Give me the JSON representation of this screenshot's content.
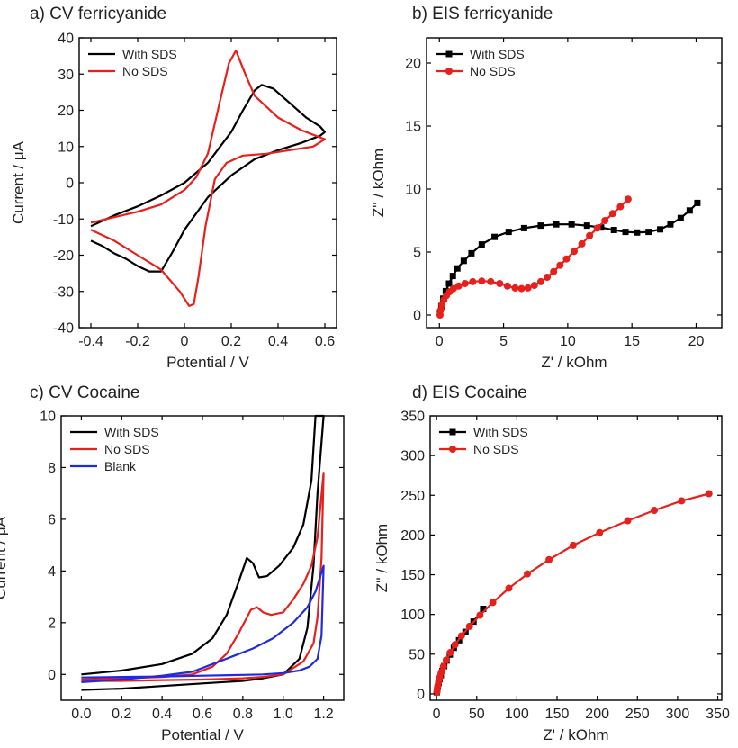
{
  "chart_data": [
    {
      "type": "line",
      "title": "a) CV ferricyanide",
      "xlabel": "Potential / V",
      "ylabel": "Current / μA",
      "xlim": [
        -0.45,
        0.65
      ],
      "ylim": [
        -40,
        40
      ],
      "xticks": [
        -0.4,
        -0.2,
        0.0,
        0.2,
        0.4,
        0.6
      ],
      "xtick_labels": [
        "-0.4",
        "-0.2",
        "0",
        "0.2",
        "0.4",
        "0.6"
      ],
      "yticks": [
        -40,
        -30,
        -20,
        -10,
        0,
        10,
        20,
        30,
        40
      ],
      "ytick_labels": [
        "-40",
        "-30",
        "-20",
        "-10",
        "0",
        "10",
        "20",
        "30",
        "40"
      ],
      "legend_position": "top-left",
      "series": [
        {
          "name": "With SDS",
          "color": "#000000",
          "markers": false,
          "x": [
            -0.4,
            -0.3,
            -0.2,
            -0.1,
            0.0,
            0.1,
            0.2,
            0.25,
            0.3,
            0.33,
            0.38,
            0.45,
            0.52,
            0.58,
            0.6,
            0.58,
            0.5,
            0.4,
            0.3,
            0.2,
            0.1,
            0.0,
            -0.05,
            -0.1,
            -0.15,
            -0.2,
            -0.25,
            -0.3,
            -0.35,
            -0.4
          ],
          "y": [
            -12,
            -9,
            -6.5,
            -3.5,
            0,
            5.5,
            14,
            20,
            25.5,
            27,
            26,
            22,
            18,
            15.5,
            14,
            13,
            11,
            9,
            6.5,
            2,
            -4,
            -13,
            -19,
            -24.5,
            -24.5,
            -23,
            -21,
            -19.5,
            -17.5,
            -16
          ]
        },
        {
          "name": "No SDS",
          "color": "#e8201c",
          "markers": false,
          "x": [
            -0.4,
            -0.3,
            -0.2,
            -0.1,
            -0.05,
            0.0,
            0.05,
            0.1,
            0.15,
            0.19,
            0.22,
            0.26,
            0.3,
            0.4,
            0.5,
            0.6,
            0.55,
            0.45,
            0.35,
            0.25,
            0.18,
            0.13,
            0.09,
            0.06,
            0.04,
            0.02,
            -0.02,
            -0.1,
            -0.2,
            -0.3,
            -0.4
          ],
          "y": [
            -11,
            -9.5,
            -8,
            -6,
            -4,
            -2,
            1.5,
            8,
            22,
            33,
            36.5,
            30,
            24,
            18,
            14.5,
            12,
            10,
            9,
            8,
            7.5,
            5.5,
            1,
            -12,
            -26,
            -33.5,
            -34,
            -30,
            -24,
            -20,
            -16,
            -13
          ]
        }
      ]
    },
    {
      "type": "line",
      "title": "b) EIS ferricyanide",
      "xlabel": "Z' / kOhm",
      "ylabel": "Z'' / kOhm",
      "xlim": [
        -1,
        22
      ],
      "ylim": [
        -1,
        22
      ],
      "xticks": [
        0,
        5,
        10,
        15,
        20
      ],
      "xtick_labels": [
        "0",
        "5",
        "10",
        "15",
        "20"
      ],
      "yticks": [
        0,
        5,
        10,
        15,
        20
      ],
      "ytick_labels": [
        "0",
        "5",
        "10",
        "15",
        "20"
      ],
      "legend_position": "top-left",
      "series": [
        {
          "name": "With SDS",
          "color": "#000000",
          "marker": "square",
          "x": [
            0.05,
            0.15,
            0.3,
            0.5,
            0.75,
            1.05,
            1.4,
            1.9,
            2.5,
            3.3,
            4.3,
            5.4,
            6.6,
            7.9,
            9.1,
            10.3,
            11.5,
            12.6,
            13.6,
            14.5,
            15.4,
            16.3,
            17.2,
            18.0,
            18.8,
            19.5,
            20.1
          ],
          "y": [
            0.2,
            0.7,
            1.3,
            1.9,
            2.5,
            3.1,
            3.7,
            4.3,
            4.9,
            5.6,
            6.2,
            6.6,
            6.9,
            7.1,
            7.2,
            7.2,
            7.1,
            6.95,
            6.75,
            6.6,
            6.55,
            6.6,
            6.8,
            7.2,
            7.7,
            8.3,
            8.9
          ]
        },
        {
          "name": "No SDS",
          "color": "#e8201c",
          "marker": "circle",
          "x": [
            0.05,
            0.1,
            0.2,
            0.35,
            0.55,
            0.8,
            1.1,
            1.5,
            2.0,
            2.6,
            3.3,
            4.0,
            4.7,
            5.3,
            5.9,
            6.4,
            6.9,
            7.4,
            7.9,
            8.4,
            8.9,
            9.4,
            9.9,
            10.5,
            11.1,
            11.7,
            12.3,
            12.9,
            13.5,
            14.1,
            14.7
          ],
          "y": [
            0.0,
            0.4,
            0.8,
            1.2,
            1.55,
            1.85,
            2.1,
            2.3,
            2.5,
            2.65,
            2.7,
            2.65,
            2.5,
            2.3,
            2.15,
            2.1,
            2.15,
            2.35,
            2.65,
            3.0,
            3.45,
            3.95,
            4.45,
            5.05,
            5.65,
            6.3,
            6.9,
            7.5,
            8.05,
            8.6,
            9.2
          ]
        }
      ]
    },
    {
      "type": "line",
      "title": "c) CV Cocaine",
      "xlabel": "Potential / V",
      "ylabel": "Current / μA",
      "xlim": [
        -0.1,
        1.3
      ],
      "ylim": [
        -1,
        10
      ],
      "xticks": [
        0.0,
        0.2,
        0.4,
        0.6,
        0.8,
        1.0,
        1.2
      ],
      "xtick_labels": [
        "0.0",
        "0.2",
        "0.4",
        "0.6",
        "0.8",
        "1.0",
        "1.2"
      ],
      "yticks": [
        0,
        2,
        4,
        6,
        8,
        10
      ],
      "ytick_labels": [
        "0",
        "2",
        "4",
        "6",
        "8",
        "10"
      ],
      "legend_position": "top-left",
      "series": [
        {
          "name": "With SDS",
          "color": "#000000",
          "markers": false,
          "x": [
            0.0,
            0.2,
            0.4,
            0.55,
            0.65,
            0.72,
            0.78,
            0.82,
            0.85,
            0.88,
            0.92,
            0.98,
            1.05,
            1.1,
            1.14,
            1.16,
            1.2,
            1.17,
            1.15,
            1.12,
            1.08,
            1.0,
            0.9,
            0.8,
            0.6,
            0.4,
            0.2,
            0.0
          ],
          "y": [
            0.0,
            0.15,
            0.4,
            0.8,
            1.4,
            2.3,
            3.6,
            4.5,
            4.3,
            3.75,
            3.8,
            4.2,
            4.9,
            5.8,
            7.5,
            10.0,
            10.0,
            7.0,
            4.2,
            1.8,
            0.6,
            0.0,
            -0.15,
            -0.25,
            -0.35,
            -0.45,
            -0.55,
            -0.6
          ]
        },
        {
          "name": "No SDS",
          "color": "#e8201c",
          "markers": false,
          "x": [
            0.0,
            0.2,
            0.4,
            0.55,
            0.65,
            0.72,
            0.78,
            0.84,
            0.87,
            0.9,
            0.94,
            1.0,
            1.05,
            1.1,
            1.14,
            1.17,
            1.2,
            1.19,
            1.17,
            1.15,
            1.1,
            1.0,
            0.9,
            0.8,
            0.6,
            0.4,
            0.2,
            0.0
          ],
          "y": [
            -0.2,
            -0.15,
            -0.1,
            0.0,
            0.3,
            0.8,
            1.6,
            2.5,
            2.6,
            2.4,
            2.3,
            2.4,
            2.9,
            3.5,
            4.2,
            5.3,
            7.8,
            4.5,
            2.2,
            1.2,
            0.5,
            0.0,
            -0.1,
            -0.15,
            -0.2,
            -0.22,
            -0.25,
            -0.25
          ]
        },
        {
          "name": "Blank",
          "color": "#1f2bdc",
          "markers": false,
          "x": [
            0.0,
            0.2,
            0.4,
            0.55,
            0.65,
            0.75,
            0.85,
            0.95,
            1.05,
            1.12,
            1.16,
            1.2,
            1.19,
            1.17,
            1.13,
            1.08,
            1.0,
            0.9,
            0.8,
            0.6,
            0.4,
            0.2,
            0.0
          ],
          "y": [
            -0.3,
            -0.2,
            -0.05,
            0.1,
            0.4,
            0.7,
            1.0,
            1.4,
            2.0,
            2.6,
            3.2,
            4.2,
            1.5,
            0.6,
            0.3,
            0.15,
            0.05,
            0.0,
            -0.02,
            -0.05,
            -0.08,
            -0.1,
            -0.12
          ]
        }
      ]
    },
    {
      "type": "line",
      "title": "d) EIS Cocaine",
      "xlabel": "Z' / kOhm",
      "ylabel": "Z'' / kOhm",
      "xlim": [
        -8,
        355
      ],
      "ylim": [
        -8,
        350
      ],
      "xticks": [
        0,
        50,
        100,
        150,
        200,
        250,
        300,
        350
      ],
      "xtick_labels": [
        "0",
        "50",
        "100",
        "150",
        "200",
        "250",
        "300",
        "350"
      ],
      "yticks": [
        0,
        50,
        100,
        150,
        200,
        250,
        300,
        350
      ],
      "ytick_labels": [
        "0",
        "50",
        "100",
        "150",
        "200",
        "250",
        "300",
        "350"
      ],
      "legend_position": "top-left",
      "series": [
        {
          "name": "With SDS",
          "color": "#000000",
          "marker": "square",
          "x": [
            0.3,
            0.8,
            1.5,
            2.5,
            3.8,
            5.3,
            7.2,
            9.5,
            12.5,
            16.5,
            21.5,
            28,
            36,
            46,
            58
          ],
          "y": [
            2,
            5,
            9,
            13.5,
            18.5,
            23.5,
            29,
            35,
            42,
            49.5,
            58,
            67.5,
            78,
            91,
            107
          ]
        },
        {
          "name": "No SDS",
          "color": "#e8201c",
          "marker": "circle",
          "x": [
            0.3,
            0.8,
            1.5,
            2.5,
            4,
            6,
            8.5,
            12,
            17,
            23,
            31,
            41,
            54,
            70,
            90,
            113,
            140,
            170,
            203,
            238,
            271,
            305,
            339
          ],
          "y": [
            2,
            5.5,
            10,
            15,
            21,
            27.5,
            34.5,
            42.5,
            52,
            62,
            73,
            85,
            99,
            115,
            133,
            151,
            169,
            187,
            203,
            218,
            231,
            243,
            252
          ]
        }
      ]
    }
  ]
}
